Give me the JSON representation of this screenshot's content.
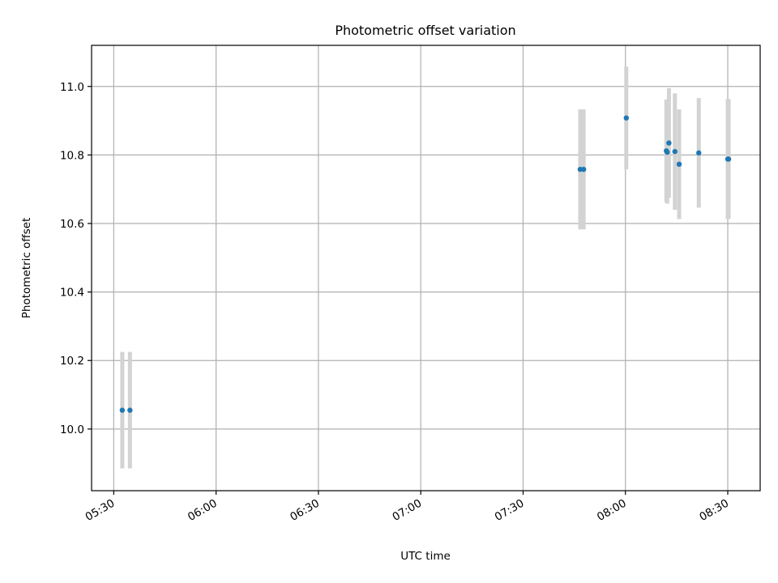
{
  "chart_data": {
    "type": "scatter",
    "title": "Photometric offset variation",
    "xlabel": "UTC time",
    "ylabel": "Photometric offset",
    "xlim": [
      "05:23:30",
      "08:39:30"
    ],
    "ylim": [
      9.82,
      11.12
    ],
    "x_ticks": [
      "05:30",
      "06:00",
      "06:30",
      "07:00",
      "07:30",
      "08:00",
      "08:30"
    ],
    "y_ticks": [
      "10.0",
      "10.2",
      "10.4",
      "10.6",
      "10.8",
      "11.0"
    ],
    "grid": true,
    "error_bar_color": "#d3d3d3",
    "marker_color": "#1f77b4",
    "series": [
      {
        "points": [
          {
            "x": "05:32:30",
            "y": 10.055,
            "yerr": 0.17
          },
          {
            "x": "05:34:45",
            "y": 10.055,
            "yerr": 0.17
          },
          {
            "x": "07:46:45",
            "y": 10.758,
            "yerr": 0.175
          },
          {
            "x": "07:47:45",
            "y": 10.758,
            "yerr": 0.175
          },
          {
            "x": "08:00:15",
            "y": 10.908,
            "yerr": 0.15
          },
          {
            "x": "08:12:00",
            "y": 10.812,
            "yerr": 0.15
          },
          {
            "x": "08:12:15",
            "y": 10.808,
            "yerr": 0.15
          },
          {
            "x": "08:12:45",
            "y": 10.835,
            "yerr": 0.16
          },
          {
            "x": "08:14:30",
            "y": 10.81,
            "yerr": 0.17
          },
          {
            "x": "08:15:45",
            "y": 10.773,
            "yerr": 0.16
          },
          {
            "x": "08:21:30",
            "y": 10.806,
            "yerr": 0.16
          },
          {
            "x": "08:30:00",
            "y": 10.788,
            "yerr": 0.175
          },
          {
            "x": "08:30:15",
            "y": 10.788,
            "yerr": 0.175
          }
        ]
      }
    ]
  }
}
